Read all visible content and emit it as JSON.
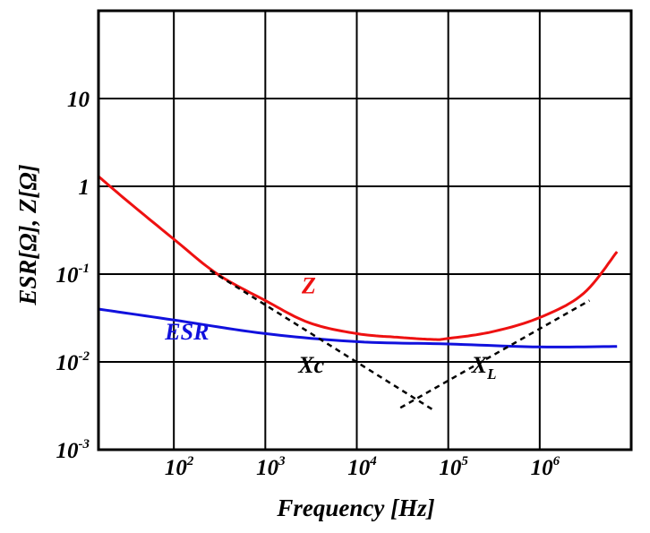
{
  "chart_data": {
    "type": "line",
    "xlabel": "Frequency [Hz]",
    "ylabel": "ESR[Ω], Z[Ω]",
    "xscale": "log",
    "yscale": "log",
    "xlim": [
      15,
      10000000
    ],
    "ylim": [
      0.001,
      100
    ],
    "grid": true,
    "legend": "none",
    "x_ticks": [
      {
        "value": 100,
        "base": "10",
        "exp": "2"
      },
      {
        "value": 1000,
        "base": "10",
        "exp": "3"
      },
      {
        "value": 10000,
        "base": "10",
        "exp": "4"
      },
      {
        "value": 100000,
        "base": "10",
        "exp": "5"
      },
      {
        "value": 1000000,
        "base": "10",
        "exp": "6"
      }
    ],
    "y_ticks": [
      {
        "value": 0.001,
        "base": "10",
        "exp": "-3"
      },
      {
        "value": 0.01,
        "base": "10",
        "exp": "-2"
      },
      {
        "value": 0.1,
        "base": "10",
        "exp": "-1"
      },
      {
        "value": 1,
        "base": "1",
        "exp": ""
      },
      {
        "value": 10,
        "base": "10",
        "exp": ""
      }
    ],
    "series": [
      {
        "name": "Z",
        "color": "#ee1111",
        "style": "solid",
        "x": [
          15,
          30,
          100,
          300,
          1000,
          3000,
          10000,
          30000,
          70000,
          100000,
          300000,
          1000000,
          3000000,
          7000000
        ],
        "y": [
          1.3,
          0.7,
          0.25,
          0.1,
          0.05,
          0.028,
          0.021,
          0.019,
          0.018,
          0.0185,
          0.022,
          0.032,
          0.06,
          0.18
        ]
      },
      {
        "name": "ESR",
        "color": "#1111dd",
        "style": "solid",
        "x": [
          15,
          100,
          1000,
          10000,
          100000,
          1000000,
          7000000
        ],
        "y": [
          0.04,
          0.03,
          0.021,
          0.017,
          0.016,
          0.0148,
          0.015
        ]
      },
      {
        "name": "Xc",
        "sub": "",
        "color": "#000000",
        "style": "dashed",
        "x": [
          250,
          70000
        ],
        "y": [
          0.11,
          0.0028
        ]
      },
      {
        "name": "X",
        "sub": "L",
        "color": "#000000",
        "style": "dashed",
        "x": [
          30000,
          3500000
        ],
        "y": [
          0.003,
          0.05
        ]
      }
    ],
    "annotations": [
      {
        "series": "Z",
        "text": "Z",
        "at": [
          2500,
          0.06
        ]
      },
      {
        "series": "ESR",
        "text": "ESR",
        "at": [
          80,
          0.018
        ]
      },
      {
        "series": "Xc",
        "text": "Xc",
        "at": [
          2300,
          0.0075
        ]
      },
      {
        "series": "X",
        "text": "X",
        "sub": "L",
        "at": [
          180000,
          0.0075
        ]
      }
    ]
  }
}
